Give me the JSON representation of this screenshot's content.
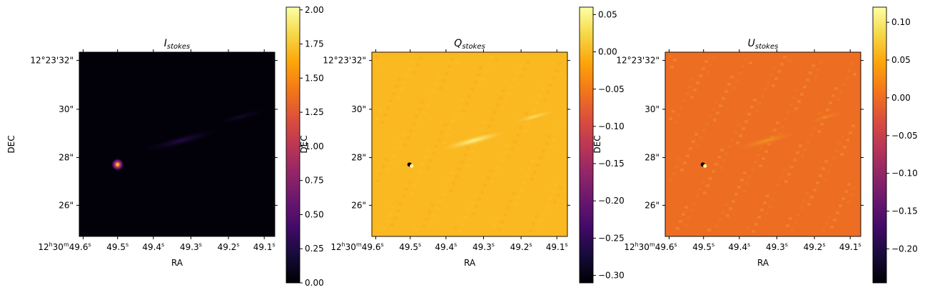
{
  "chart_data": [
    {
      "type": "heatmap",
      "title_main": "I",
      "title_sub": "stokes",
      "xlabel": "RA",
      "ylabel": "DEC",
      "x_ticks": [
        {
          "label_main": "12",
          "h": "h",
          "mid": "30",
          "m": "m",
          "sec": "49.6",
          "s": "s"
        },
        {
          "label": "49.5",
          "s": "s"
        },
        {
          "label": "49.4",
          "s": "s"
        },
        {
          "label": "49.3",
          "s": "s"
        },
        {
          "label": "49.2",
          "s": "s"
        },
        {
          "label": "49.1",
          "s": "s"
        }
      ],
      "y_ticks": [
        "12°23'32\"",
        "30\"",
        "28\"",
        "26\""
      ],
      "colormap": "inferno",
      "colorbar": {
        "min": 0.0,
        "max": 2.02,
        "ticks": [
          "0.00",
          "0.25",
          "0.50",
          "0.75",
          "1.00",
          "1.25",
          "1.50",
          "1.75",
          "2.00"
        ],
        "tick_values": [
          0,
          0.25,
          0.5,
          0.75,
          1.0,
          1.25,
          1.5,
          1.75,
          2.0
        ]
      },
      "background_value": 0.02,
      "features": [
        {
          "kind": "point-source",
          "value": 1.8
        }
      ]
    },
    {
      "type": "heatmap",
      "title_main": "Q",
      "title_sub": "stokes",
      "xlabel": "RA",
      "ylabel": "DEC",
      "x_ticks": [
        {
          "label_main": "12",
          "h": "h",
          "mid": "30",
          "m": "m",
          "sec": "49.6",
          "s": "s"
        },
        {
          "label": "49.5",
          "s": "s"
        },
        {
          "label": "49.4",
          "s": "s"
        },
        {
          "label": "49.3",
          "s": "s"
        },
        {
          "label": "49.2",
          "s": "s"
        },
        {
          "label": "49.1",
          "s": "s"
        }
      ],
      "y_ticks": [
        "12°23'32\"",
        "30\"",
        "28\"",
        "26\""
      ],
      "colormap": "inferno",
      "colorbar": {
        "min": -0.31,
        "max": 0.06,
        "ticks": [
          "0.05",
          "0.00",
          "−0.05",
          "−0.10",
          "−0.15",
          "−0.20",
          "−0.25",
          "−0.30"
        ],
        "tick_values": [
          0.05,
          0.0,
          -0.05,
          -0.1,
          -0.15,
          -0.2,
          -0.25,
          -0.3
        ]
      },
      "background_value": 0.0
    },
    {
      "type": "heatmap",
      "title_main": "U",
      "title_sub": "stokes",
      "xlabel": "RA",
      "ylabel": "DEC",
      "x_ticks": [
        {
          "label_main": "12",
          "h": "h",
          "mid": "30",
          "m": "m",
          "sec": "49.6",
          "s": "s"
        },
        {
          "label": "49.5",
          "s": "s"
        },
        {
          "label": "49.4",
          "s": "s"
        },
        {
          "label": "49.3",
          "s": "s"
        },
        {
          "label": "49.2",
          "s": "s"
        },
        {
          "label": "49.1",
          "s": "s"
        }
      ],
      "y_ticks": [
        "12°23'32\"",
        "30\"",
        "28\"",
        "26\""
      ],
      "colormap": "inferno",
      "colorbar": {
        "min": -0.245,
        "max": 0.12,
        "ticks": [
          "0.10",
          "0.05",
          "0.00",
          "−0.05",
          "−0.10",
          "−0.15",
          "−0.20"
        ],
        "tick_values": [
          0.1,
          0.05,
          0.0,
          -0.05,
          -0.1,
          -0.15,
          -0.2
        ]
      },
      "background_value": 0.0
    }
  ]
}
